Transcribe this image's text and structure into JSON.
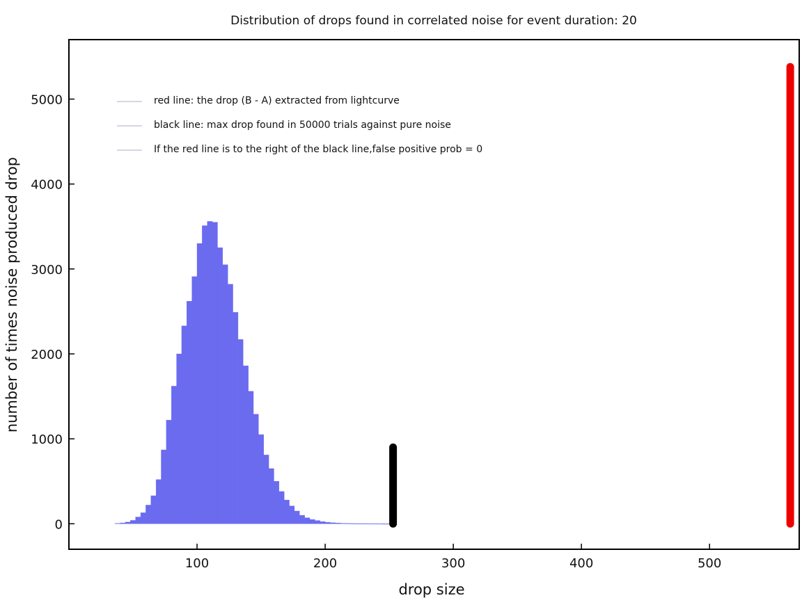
{
  "chart_data": {
    "type": "bar",
    "title": "Distribution of drops found in correlated noise for event duration: 20",
    "xlabel": "drop size",
    "ylabel": "number of times noise produced drop",
    "xlim": [
      0,
      570
    ],
    "ylim": [
      -300,
      5700
    ],
    "xticks": [
      100,
      200,
      300,
      400,
      500
    ],
    "yticks": [
      0,
      1000,
      2000,
      3000,
      4000,
      5000
    ],
    "grid": false,
    "legend_position": "top-left",
    "legend": [
      "red line: the drop (B - A) extracted from lightcurve",
      "black line: max drop found in 50000 trials against pure noise",
      "If the red line is to the right of the black line,false positive prob = 0"
    ],
    "histogram": {
      "color": "#6b6bf0",
      "bin_width": 4,
      "bin_starts": [
        36,
        40,
        44,
        48,
        52,
        56,
        60,
        64,
        68,
        72,
        76,
        80,
        84,
        88,
        92,
        96,
        100,
        104,
        108,
        112,
        116,
        120,
        124,
        128,
        132,
        136,
        140,
        144,
        148,
        152,
        156,
        160,
        164,
        168,
        172,
        176,
        180,
        184,
        188,
        192,
        196,
        200,
        204,
        208,
        212,
        216,
        220,
        224,
        228,
        232,
        236,
        240,
        244,
        248
      ],
      "counts": [
        5,
        10,
        20,
        40,
        80,
        130,
        220,
        330,
        520,
        870,
        1220,
        1620,
        2000,
        2330,
        2620,
        2910,
        3300,
        3510,
        3560,
        3550,
        3250,
        3050,
        2820,
        2490,
        2170,
        1860,
        1560,
        1290,
        1050,
        810,
        650,
        500,
        380,
        280,
        210,
        150,
        100,
        70,
        50,
        38,
        25,
        18,
        12,
        9,
        6,
        4,
        3,
        2,
        2,
        1,
        1,
        1,
        0,
        0
      ]
    },
    "lines": [
      {
        "label": "black line",
        "color": "#000000",
        "x": 253,
        "y": [
          0,
          900
        ]
      },
      {
        "label": "red line",
        "color": "#ee0000",
        "x": 563,
        "y": [
          0,
          5380
        ]
      }
    ]
  }
}
